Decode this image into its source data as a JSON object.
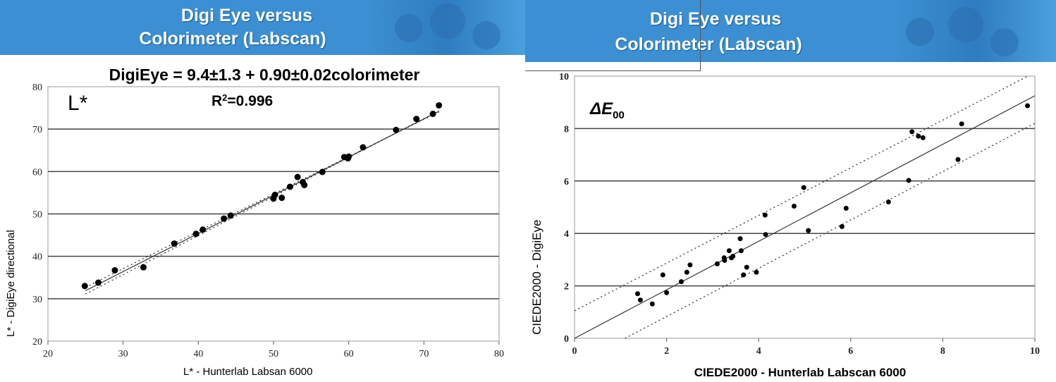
{
  "left_panel": {
    "header": {
      "line1": "Digi Eye versus",
      "line2": "Colorimeter (Labscan)"
    }
  },
  "right_panel": {
    "header": {
      "line1": "Digi Eye versus",
      "line2": "Colorimeter (Labscan)"
    }
  },
  "colors": {
    "header": "#3b8fd2",
    "points": "#000000",
    "grid": "#444444"
  },
  "chart_data": [
    {
      "type": "scatter",
      "equation": "DigiEye = 9.4±1.3 + 0.90±0.02colorimeter",
      "label": "L*",
      "r2_label": "R",
      "r2_sup": "2",
      "r2_value": "=0.996",
      "xlabel": "L* - Hunterlab Labsan 6000",
      "ylabel": "L* - DigiEye directional",
      "xlim": [
        20,
        80
      ],
      "ylim": [
        20,
        80
      ],
      "xticks": [
        20,
        30,
        40,
        50,
        60,
        70,
        80
      ],
      "yticks": [
        20,
        30,
        40,
        50,
        60,
        70,
        80
      ],
      "grid": "horizontal",
      "points": [
        [
          24.9,
          33.0
        ],
        [
          26.7,
          33.8
        ],
        [
          28.9,
          36.7
        ],
        [
          32.7,
          37.4
        ],
        [
          36.8,
          43.0
        ],
        [
          39.7,
          45.3
        ],
        [
          40.6,
          46.3
        ],
        [
          43.4,
          48.9
        ],
        [
          44.3,
          49.6
        ],
        [
          50.0,
          53.6
        ],
        [
          50.2,
          54.5
        ],
        [
          51.1,
          53.8
        ],
        [
          52.2,
          56.4
        ],
        [
          53.2,
          58.7
        ],
        [
          53.9,
          57.5
        ],
        [
          54.1,
          56.8
        ],
        [
          56.5,
          59.9
        ],
        [
          59.4,
          63.4
        ],
        [
          59.9,
          63.1
        ],
        [
          60.0,
          63.5
        ],
        [
          61.9,
          65.7
        ],
        [
          66.3,
          69.8
        ],
        [
          69.0,
          72.4
        ],
        [
          71.2,
          73.6
        ],
        [
          72.0,
          75.6
        ]
      ],
      "fit": {
        "intercept": 9.4,
        "slope": 0.9,
        "x_range": [
          25,
          72
        ]
      },
      "bands": [
        {
          "intercept": 8.1,
          "slope": 0.92
        },
        {
          "intercept": 10.7,
          "slope": 0.88
        }
      ]
    },
    {
      "type": "scatter",
      "label": "ΔE",
      "label_sub": "00",
      "xlabel": "CIEDE2000 - Hunterlab Labscan 6000",
      "ylabel": "CIEDE2000 - DigiEye",
      "xlim": [
        0,
        10
      ],
      "ylim": [
        0,
        10
      ],
      "xticks": [
        0,
        2,
        4,
        6,
        8,
        10
      ],
      "yticks": [
        0,
        2,
        4,
        6,
        8,
        10
      ],
      "grid": "horizontal",
      "points": [
        [
          1.37,
          1.7
        ],
        [
          1.43,
          1.46
        ],
        [
          1.69,
          1.31
        ],
        [
          1.92,
          2.42
        ],
        [
          2.0,
          1.74
        ],
        [
          2.32,
          2.16
        ],
        [
          2.44,
          2.52
        ],
        [
          2.51,
          2.8
        ],
        [
          3.1,
          2.84
        ],
        [
          3.25,
          3.07
        ],
        [
          3.26,
          2.97
        ],
        [
          3.36,
          3.34
        ],
        [
          3.41,
          3.07
        ],
        [
          3.44,
          3.13
        ],
        [
          3.6,
          3.8
        ],
        [
          3.62,
          3.34
        ],
        [
          3.67,
          2.42
        ],
        [
          3.74,
          2.71
        ],
        [
          3.95,
          2.52
        ],
        [
          4.14,
          4.7
        ],
        [
          4.15,
          3.96
        ],
        [
          4.77,
          5.04
        ],
        [
          4.98,
          5.75
        ],
        [
          5.08,
          4.11
        ],
        [
          5.81,
          4.26
        ],
        [
          5.9,
          4.96
        ],
        [
          6.82,
          5.2
        ],
        [
          7.26,
          6.02
        ],
        [
          7.33,
          7.88
        ],
        [
          7.47,
          7.71
        ],
        [
          7.57,
          7.65
        ],
        [
          8.33,
          6.82
        ],
        [
          8.41,
          8.18
        ],
        [
          9.84,
          8.87
        ]
      ],
      "fit": {
        "intercept": 0,
        "slope": 0.925,
        "x_range": [
          0,
          10
        ]
      },
      "bands": [
        {
          "intercept": 1.05,
          "slope": 0.909
        },
        {
          "intercept": -1.01,
          "slope": 0.921
        }
      ]
    }
  ]
}
